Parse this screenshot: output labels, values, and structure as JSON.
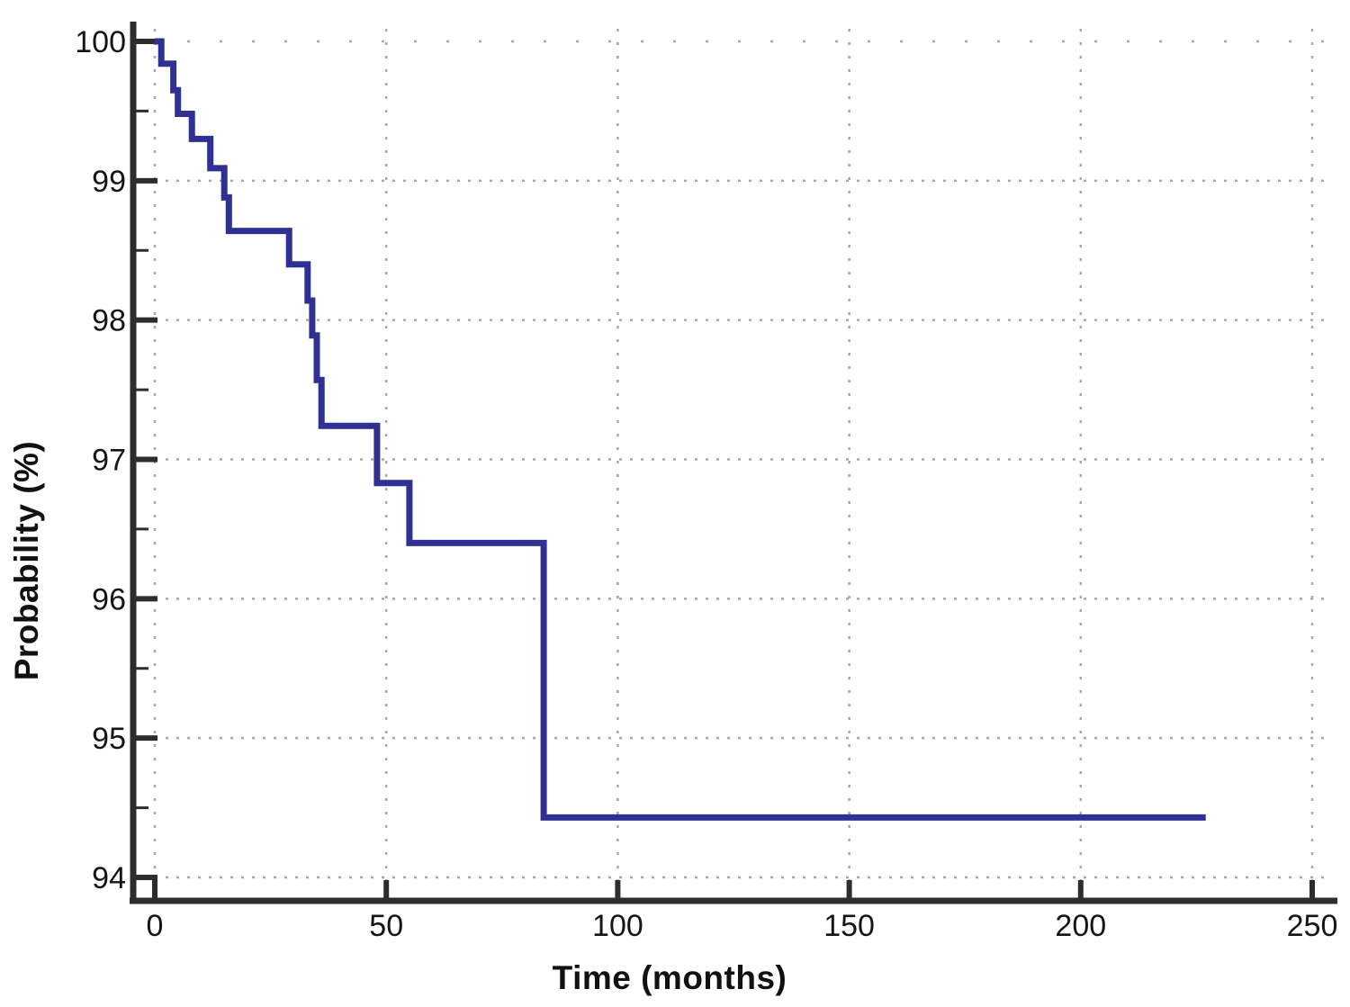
{
  "figure": {
    "background": "#ffffff"
  },
  "chart_data": {
    "type": "line",
    "subtype": "kaplan-meier-step",
    "title": "",
    "xlabel": "Time (months)",
    "ylabel": "Probability (%)",
    "xlim": [
      0,
      250
    ],
    "ylim": [
      94,
      100
    ],
    "xticks": [
      0,
      50,
      100,
      150,
      200,
      250
    ],
    "yticks": [
      94,
      95,
      96,
      97,
      98,
      99,
      100
    ],
    "y_minor_ticks": [
      94.5,
      95.5,
      96.5,
      97.5,
      98.5,
      99.5
    ],
    "grid": "dotted",
    "legend": "none",
    "colors": {
      "line": "#2E3193",
      "axis": "#2d2d2d",
      "grid": "#a8a8a8",
      "tick_label": "#151515"
    },
    "series": [
      {
        "start": [
          0,
          100
        ],
        "events": [
          [
            1.4,
            99.84
          ],
          [
            4,
            99.65
          ],
          [
            5,
            99.48
          ],
          [
            8,
            99.3
          ],
          [
            12,
            99.09
          ],
          [
            15,
            98.88
          ],
          [
            16,
            98.64
          ],
          [
            29,
            98.4
          ],
          [
            33,
            98.14
          ],
          [
            34,
            97.89
          ],
          [
            35,
            97.57
          ],
          [
            36,
            97.24
          ],
          [
            48,
            96.83
          ],
          [
            55,
            96.4
          ],
          [
            84,
            94.43
          ]
        ],
        "end_time": 227
      }
    ]
  }
}
